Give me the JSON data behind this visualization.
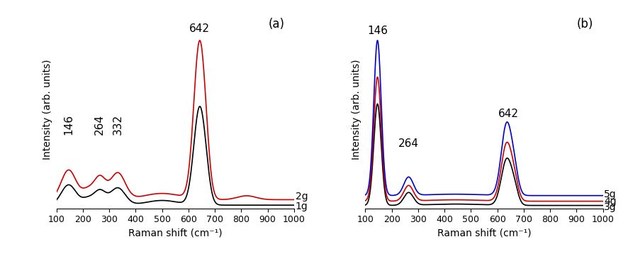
{
  "xlim": [
    100,
    1000
  ],
  "xlabel": "Raman shift (cm⁻¹)",
  "ylabel": "Intensity (arb. units)",
  "panel_a_label": "(a)",
  "panel_b_label": "(b)",
  "colors": {
    "black": "#000000",
    "red": "#cc0000",
    "blue": "#0000cc"
  },
  "linewidth": 1.2,
  "annotation_fontsize": 11,
  "label_fontsize": 10,
  "axis_label_fontsize": 10,
  "panel_label_fontsize": 12
}
